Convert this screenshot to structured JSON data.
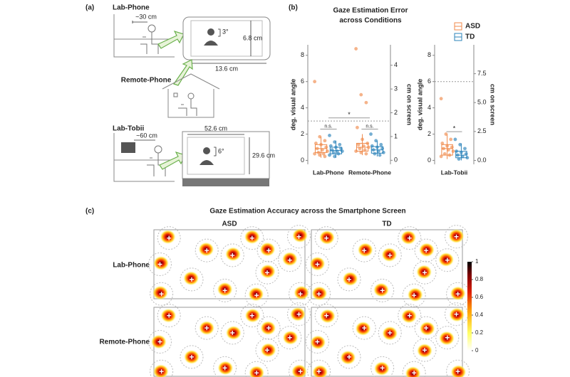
{
  "panel_a": {
    "label": "(a)",
    "conditions": [
      "Lab-Phone",
      "Remote-Phone",
      "Lab-Tobii"
    ],
    "lab_phone_distance": "~30 cm",
    "phone_width": "13.6 cm",
    "phone_height": "6.8 cm",
    "phone_angle": "3°",
    "tobii_distance": "~60 cm",
    "tobii_width": "52.6 cm",
    "tobii_height": "29.6 cm",
    "tobii_angle": "6°"
  },
  "panel_b": {
    "label": "(b)",
    "title_lines": [
      "Gaze Estimation Error",
      "across Conditions"
    ]
  },
  "panel_c": {
    "label": "(c)",
    "title": "Gaze Estimation Accuracy across the Smartphone Screen",
    "columns": [
      "ASD",
      "TD"
    ],
    "rows": [
      "Lab-Phone",
      "Remote-Phone"
    ]
  },
  "chart_data": [
    {
      "type": "box",
      "ylabel": "deg. visual angle",
      "y2label": "cm on screen",
      "categories": [
        "Lab-Phone",
        "Remote-Phone"
      ],
      "ylim": [
        -0.3,
        8.8
      ],
      "yticks": [
        0,
        2,
        4,
        6,
        8
      ],
      "y2lim": [
        -0.17,
        4.86
      ],
      "y2ticks": [
        0,
        1,
        2,
        3,
        4
      ],
      "hline": 3,
      "annotations": [
        "n.s.",
        "n.s.",
        "*"
      ],
      "series": [
        {
          "color": "#f08a4b",
          "values": [
            [
              6.0,
              1.8,
              1.5,
              1.3,
              1.2,
              1.0,
              0.9,
              0.8,
              0.7,
              0.6,
              0.5,
              0.5,
              0.4,
              0.3
            ],
            [
              8.5,
              5.0,
              4.4,
              2.5,
              1.6,
              1.3,
              1.2,
              1.1,
              1.0,
              0.9,
              0.8,
              0.7,
              0.6,
              0.5
            ]
          ],
          "boxes": [
            {
              "low": 0.2,
              "q1": 0.6,
              "median": 0.9,
              "q3": 1.2,
              "high": 1.8
            },
            {
              "low": 0.4,
              "q1": 0.7,
              "median": 1.0,
              "q3": 1.3,
              "high": 2.0
            }
          ]
        },
        {
          "color": "#2b83ba",
          "values": [
            [
              1.9,
              1.4,
              1.2,
              1.1,
              1.0,
              0.9,
              0.8,
              0.7,
              0.7,
              0.6,
              0.5,
              0.4,
              0.3
            ],
            [
              2.0,
              1.5,
              1.2,
              1.1,
              1.0,
              0.9,
              0.8,
              0.7,
              0.6,
              0.5,
              0.4
            ]
          ],
          "boxes": [
            {
              "low": 0.2,
              "q1": 0.5,
              "median": 0.75,
              "q3": 1.0,
              "high": 1.5
            },
            {
              "low": 0.3,
              "q1": 0.55,
              "median": 0.8,
              "q3": 1.05,
              "high": 1.5
            }
          ]
        }
      ]
    },
    {
      "type": "box",
      "ylabel": "deg. visual angle",
      "y2label": "cm on screen",
      "categories": [
        "Lab-Tobii"
      ],
      "ylim": [
        -0.3,
        8.8
      ],
      "yticks": [
        0,
        2,
        4,
        6,
        8
      ],
      "y2lim": [
        -0.34,
        10.0
      ],
      "y2ticks": [
        {
          "value": 0,
          "label": "0.0"
        },
        {
          "value": 2.5,
          "label": "2.5"
        },
        {
          "value": 5,
          "label": "5.0"
        },
        {
          "value": 7.5,
          "label": "7.5"
        }
      ],
      "hline": 6,
      "annotations": [
        "*"
      ],
      "legend": "top",
      "series": [
        {
          "name": "ASD",
          "color": "#f08a4b",
          "values": [
            [
              4.7,
              2.0,
              1.6,
              1.3,
              1.1,
              1.0,
              0.9,
              0.8,
              0.7,
              0.5,
              0.4,
              0.3
            ]
          ],
          "boxes": [
            {
              "low": 0.1,
              "q1": 0.4,
              "median": 0.9,
              "q3": 1.2,
              "high": 2.0
            }
          ]
        },
        {
          "name": "TD",
          "color": "#2b83ba",
          "values": [
            [
              1.6,
              1.2,
              0.9,
              0.7,
              0.6,
              0.5,
              0.4,
              0.3,
              0.2,
              0.1
            ]
          ],
          "boxes": [
            {
              "low": 0.0,
              "q1": 0.2,
              "median": 0.4,
              "q3": 0.7,
              "high": 1.3
            }
          ]
        }
      ]
    },
    {
      "type": "colorbar",
      "ylim": [
        0,
        1
      ],
      "yticks": [
        0,
        0.2,
        0.4,
        0.6,
        0.8,
        1
      ]
    }
  ]
}
